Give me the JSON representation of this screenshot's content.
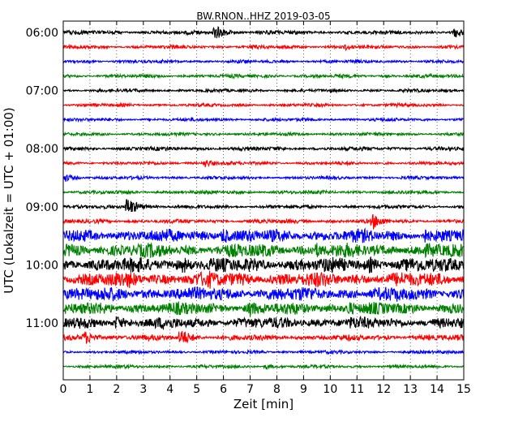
{
  "chart_data": {
    "type": "line",
    "title": "BW.RNON..HHZ 2019-03-05",
    "xlabel": "Zeit  [min]",
    "ylabel": "UTC (Lokalzeit = UTC + 01:00)",
    "xlim": [
      0,
      15
    ],
    "x_ticks": [
      "0",
      "1",
      "2",
      "3",
      "4",
      "5",
      "6",
      "7",
      "8",
      "9",
      "10",
      "11",
      "12",
      "13",
      "14",
      "15"
    ],
    "y_ticks": [
      "06:00",
      "07:00",
      "08:00",
      "09:00",
      "10:00",
      "11:00"
    ],
    "grid": "vertical-dotted",
    "trace_colors": [
      "#000000",
      "#ff0000",
      "#0000ff",
      "#008000"
    ],
    "series": [
      {
        "start": "06:00",
        "amplitude": 0.25,
        "events": [
          {
            "x": 5.7,
            "amp": 0.9
          },
          {
            "x": 14.7,
            "amp": 0.7
          }
        ]
      },
      {
        "start": "06:15",
        "amplitude": 0.22,
        "events": [
          {
            "x": 10.6,
            "amp": 0.4
          }
        ]
      },
      {
        "start": "06:30",
        "amplitude": 0.2,
        "events": []
      },
      {
        "start": "06:45",
        "amplitude": 0.22,
        "events": []
      },
      {
        "start": "07:00",
        "amplitude": 0.2,
        "events": []
      },
      {
        "start": "07:15",
        "amplitude": 0.2,
        "events": []
      },
      {
        "start": "07:30",
        "amplitude": 0.2,
        "events": []
      },
      {
        "start": "07:45",
        "amplitude": 0.2,
        "events": []
      },
      {
        "start": "08:00",
        "amplitude": 0.24,
        "events": []
      },
      {
        "start": "08:15",
        "amplitude": 0.2,
        "events": [
          {
            "x": 5.3,
            "amp": 0.55
          }
        ]
      },
      {
        "start": "08:30",
        "amplitude": 0.2,
        "events": [
          {
            "x": 0.1,
            "amp": 0.5
          }
        ]
      },
      {
        "start": "08:45",
        "amplitude": 0.22,
        "events": []
      },
      {
        "start": "09:00",
        "amplitude": 0.22,
        "events": [
          {
            "x": 2.4,
            "amp": 1.2
          }
        ]
      },
      {
        "start": "09:15",
        "amplitude": 0.25,
        "events": [
          {
            "x": 11.6,
            "amp": 1.0
          }
        ]
      },
      {
        "start": "09:30",
        "amplitude": 0.8,
        "events": [
          {
            "x": 6.0,
            "amp": 1.1
          },
          {
            "x": 13.5,
            "amp": 1.1
          }
        ]
      },
      {
        "start": "09:45",
        "amplitude": 0.85,
        "events": [
          {
            "x": 3.5,
            "amp": 1.0
          },
          {
            "x": 9.5,
            "amp": 1.0
          }
        ]
      },
      {
        "start": "10:00",
        "amplitude": 0.9,
        "events": [
          {
            "x": 4.5,
            "amp": 1.1
          },
          {
            "x": 11.5,
            "amp": 1.1
          }
        ]
      },
      {
        "start": "10:15",
        "amplitude": 0.9,
        "events": [
          {
            "x": 2.5,
            "amp": 1.2
          },
          {
            "x": 5.5,
            "amp": 1.2
          }
        ]
      },
      {
        "start": "10:30",
        "amplitude": 0.85,
        "events": [
          {
            "x": 8.0,
            "amp": 1.1
          },
          {
            "x": 12.5,
            "amp": 1.0
          }
        ]
      },
      {
        "start": "10:45",
        "amplitude": 0.75,
        "events": [
          {
            "x": 7.0,
            "amp": 1.2
          },
          {
            "x": 10.7,
            "amp": 1.0
          }
        ]
      },
      {
        "start": "11:00",
        "amplitude": 0.7,
        "events": [
          {
            "x": 2.0,
            "amp": 1.0
          },
          {
            "x": 10.8,
            "amp": 0.9
          }
        ]
      },
      {
        "start": "11:15",
        "amplitude": 0.35,
        "events": [
          {
            "x": 0.8,
            "amp": 0.9
          },
          {
            "x": 4.4,
            "amp": 1.2
          }
        ]
      },
      {
        "start": "11:30",
        "amplitude": 0.2,
        "events": []
      },
      {
        "start": "11:45",
        "amplitude": 0.2,
        "events": [
          {
            "x": 7.6,
            "amp": 0.35
          }
        ]
      }
    ]
  }
}
